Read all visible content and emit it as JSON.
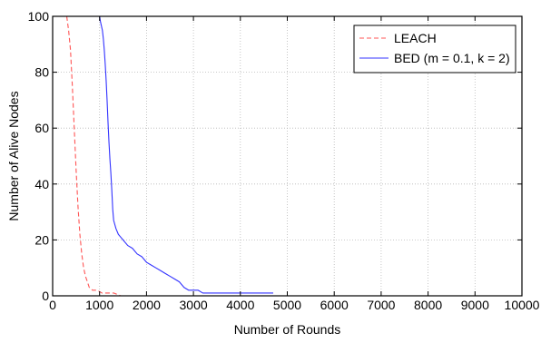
{
  "chart_data": {
    "type": "line",
    "title": "",
    "xlabel": "Number of Rounds",
    "ylabel": "Number of Alive Nodes",
    "xlim": [
      0,
      10000
    ],
    "ylim": [
      0,
      100
    ],
    "xticks": [
      0,
      1000,
      2000,
      3000,
      4000,
      5000,
      6000,
      7000,
      8000,
      9000,
      10000
    ],
    "yticks": [
      0,
      20,
      40,
      60,
      80,
      100
    ],
    "xtick_labels": [
      "0",
      "1000",
      "2000",
      "3000",
      "4000",
      "5000",
      "6000",
      "7000",
      "8000",
      "9000",
      "10000"
    ],
    "ytick_labels": [
      "0",
      "20",
      "40",
      "60",
      "80",
      "100"
    ],
    "grid": true,
    "grid_style": "dotted",
    "legend_position": "top-right",
    "series": [
      {
        "name": "LEACH",
        "color": "#ff5555",
        "line_style": "dashed",
        "points": [
          [
            300,
            100
          ],
          [
            340,
            95
          ],
          [
            380,
            88
          ],
          [
            420,
            75
          ],
          [
            460,
            60
          ],
          [
            500,
            45
          ],
          [
            540,
            32
          ],
          [
            580,
            22
          ],
          [
            620,
            15
          ],
          [
            660,
            10
          ],
          [
            700,
            7
          ],
          [
            740,
            5
          ],
          [
            780,
            3
          ],
          [
            850,
            2
          ],
          [
            950,
            2
          ],
          [
            1050,
            1
          ],
          [
            1300,
            1
          ],
          [
            1450,
            0
          ]
        ]
      },
      {
        "name": "BED (m = 0.1, k = 2)",
        "color": "#3333ff",
        "line_style": "solid",
        "points": [
          [
            0,
            100
          ],
          [
            1000,
            100
          ],
          [
            1020,
            98
          ],
          [
            1060,
            95
          ],
          [
            1080,
            92
          ],
          [
            1100,
            88
          ],
          [
            1120,
            83
          ],
          [
            1140,
            77
          ],
          [
            1160,
            70
          ],
          [
            1180,
            62
          ],
          [
            1200,
            55
          ],
          [
            1220,
            49
          ],
          [
            1240,
            44
          ],
          [
            1260,
            38
          ],
          [
            1280,
            31
          ],
          [
            1300,
            27
          ],
          [
            1350,
            24
          ],
          [
            1400,
            22
          ],
          [
            1450,
            21
          ],
          [
            1500,
            20
          ],
          [
            1600,
            18
          ],
          [
            1700,
            17
          ],
          [
            1800,
            15
          ],
          [
            1900,
            14
          ],
          [
            2000,
            12
          ],
          [
            2100,
            11
          ],
          [
            2200,
            10
          ],
          [
            2300,
            9
          ],
          [
            2400,
            8
          ],
          [
            2500,
            7
          ],
          [
            2600,
            6
          ],
          [
            2700,
            5
          ],
          [
            2800,
            3
          ],
          [
            2900,
            2
          ],
          [
            3100,
            2
          ],
          [
            3200,
            1
          ],
          [
            4700,
            1
          ]
        ]
      }
    ]
  }
}
